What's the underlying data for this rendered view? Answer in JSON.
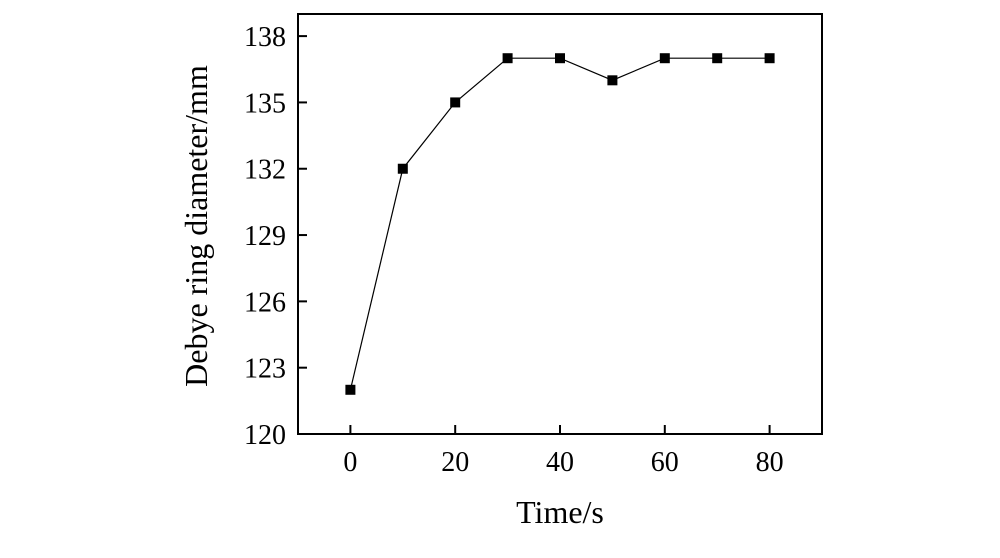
{
  "chart_data": {
    "type": "line",
    "title": "",
    "xlabel": "Time/s",
    "ylabel": "Debye ring diameter/mm",
    "xlim": [
      -10,
      90
    ],
    "ylim": [
      120,
      139
    ],
    "xticks": [
      0,
      20,
      40,
      60,
      80
    ],
    "yticks": [
      120,
      123,
      126,
      129,
      132,
      135,
      138
    ],
    "grid": false,
    "legend": "none",
    "series": [
      {
        "x": [
          0,
          10,
          20,
          30,
          40,
          50,
          60,
          70,
          80
        ],
        "y": [
          122,
          132,
          135,
          137,
          137,
          136,
          137,
          137,
          137
        ],
        "marker": "square",
        "color": "#000000"
      }
    ]
  }
}
